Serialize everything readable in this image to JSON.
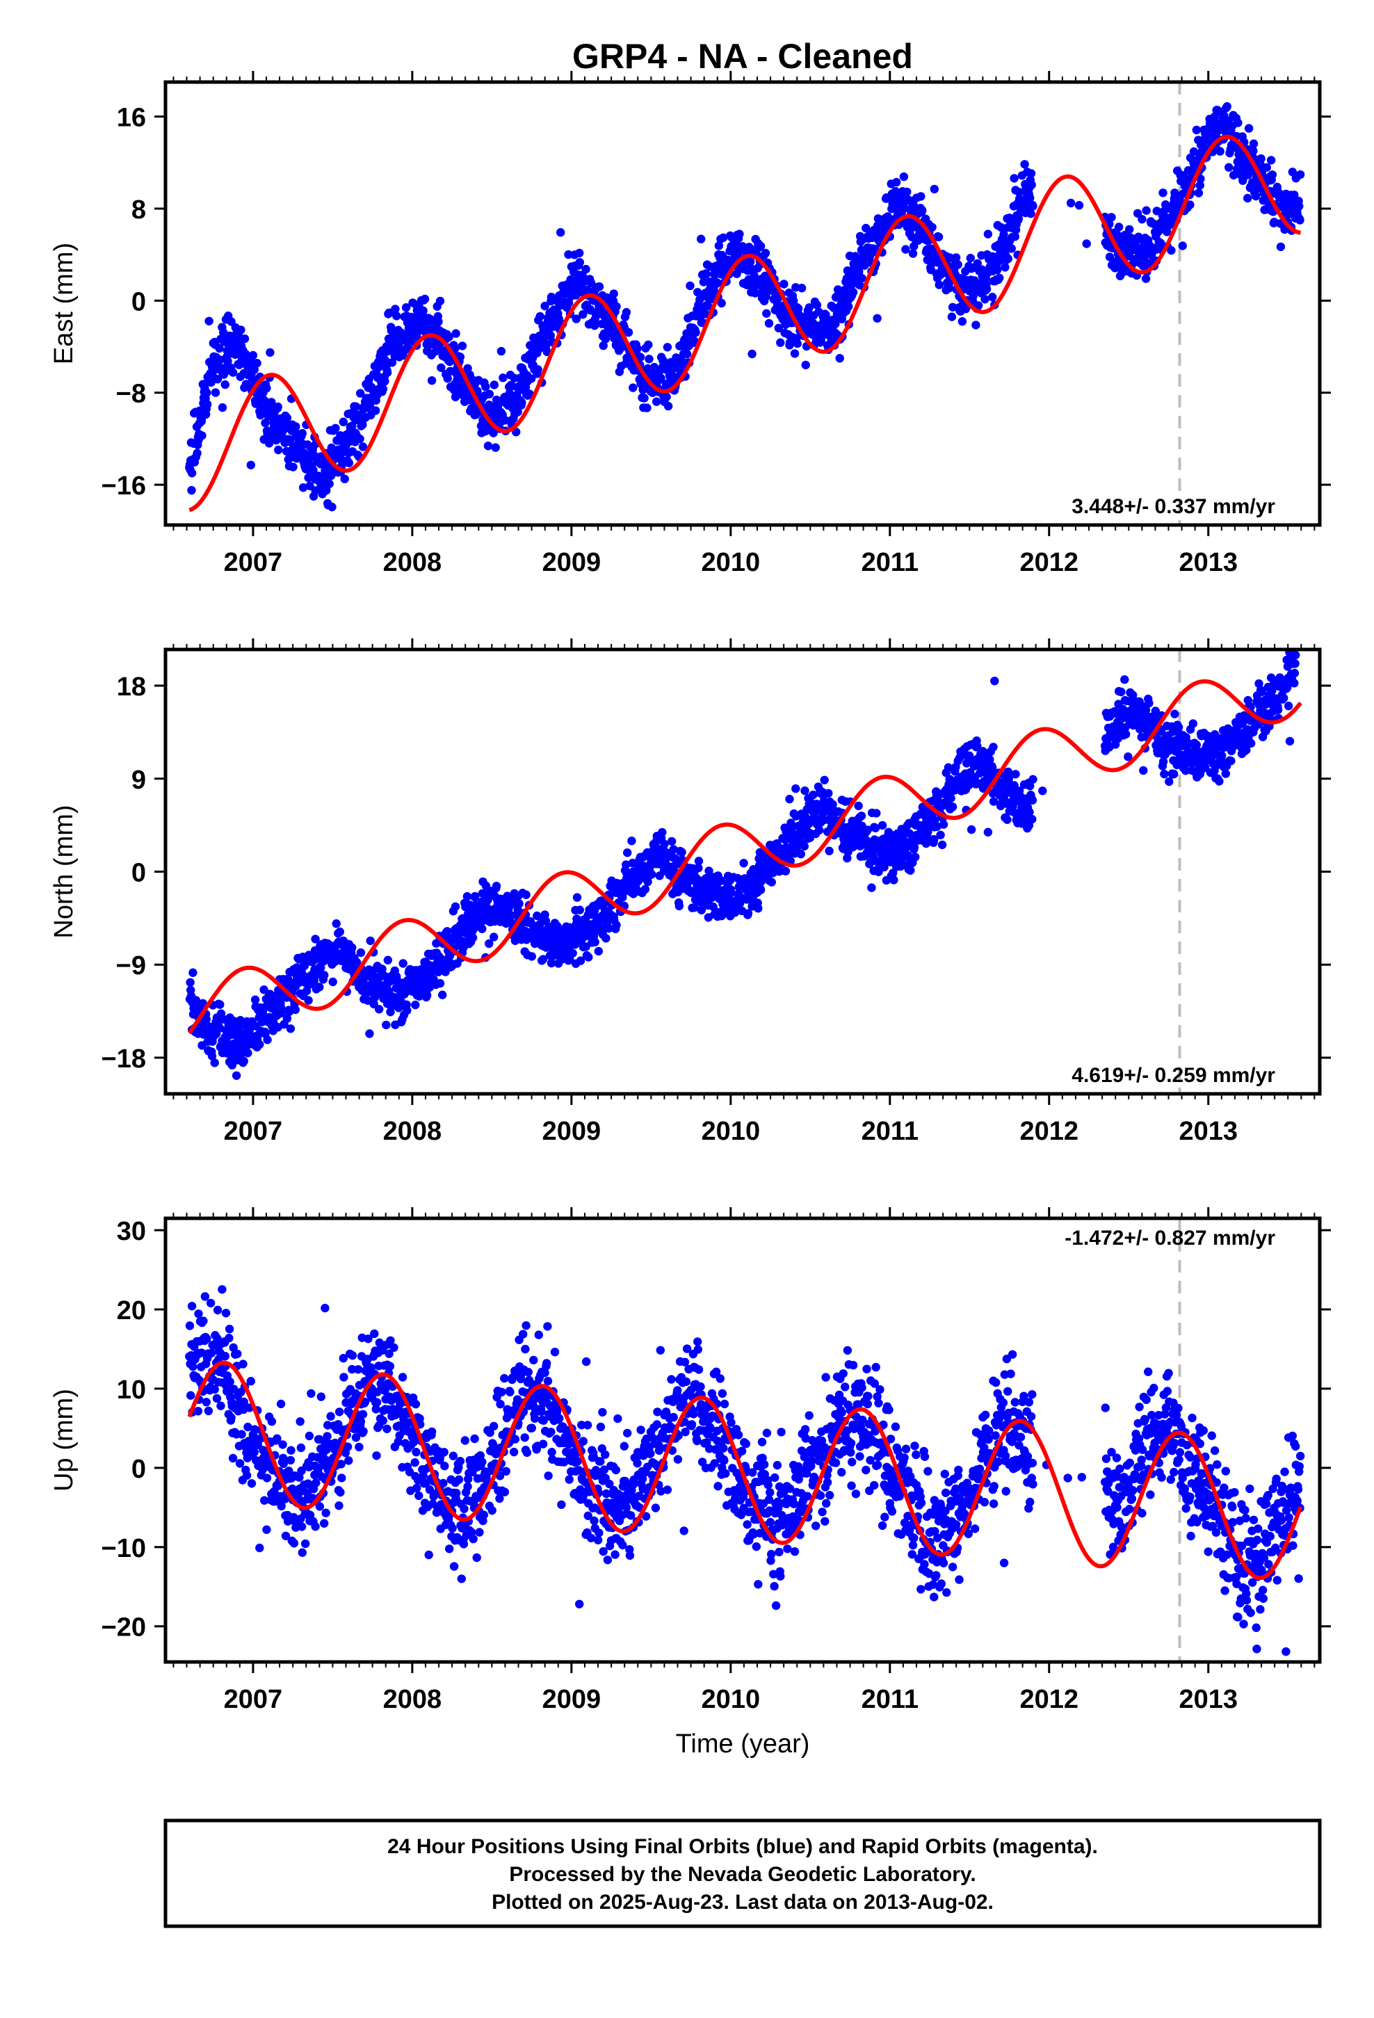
{
  "title": "GRP4  - NA - Cleaned",
  "colors": {
    "final": "#0000ff",
    "model": "#ff0000",
    "marker": "#bdbdbd",
    "frame": "#000000"
  },
  "chart_data": [
    {
      "type": "scatter",
      "ylabel": "East (mm)",
      "ylim": [
        -19.5,
        19
      ],
      "xlim": [
        2006.45,
        2013.7
      ],
      "yticks": [
        "16",
        "8",
        "0",
        "−8",
        "−16"
      ],
      "ytick_values": [
        16,
        8,
        0,
        -8,
        -16
      ],
      "xticks": [
        "2007",
        "2008",
        "2009",
        "2010",
        "2011",
        "2012",
        "2013"
      ],
      "xtick_values": [
        2007,
        2008,
        2009,
        2010,
        2011,
        2012,
        2013
      ],
      "marker_line": 2012.82,
      "rate_label": "3.448+/- 0.337 mm/yr",
      "model": {
        "t0": 2006.6,
        "y0": -13.2,
        "rate": 3.448,
        "sin": 0,
        "cos": -5.0,
        "phase_shift": 0,
        "year_min": 2006.6,
        "year_max": 2013.58
      },
      "series": [
        {
          "name": "Final Orbits",
          "values": [
            [
              2006.6,
              -14.5
            ],
            [
              2006.75,
              -5.5
            ],
            [
              2006.9,
              -4.0
            ],
            [
              2007.05,
              -8.5
            ],
            [
              2007.25,
              -12.5
            ],
            [
              2007.45,
              -15.5
            ],
            [
              2007.65,
              -11.0
            ],
            [
              2007.85,
              -4.5
            ],
            [
              2008.05,
              -1.5
            ],
            [
              2008.25,
              -5.0
            ],
            [
              2008.45,
              -10.0
            ],
            [
              2008.65,
              -9.0
            ],
            [
              2008.85,
              -2.0
            ],
            [
              2009.05,
              1.5
            ],
            [
              2009.25,
              -2.0
            ],
            [
              2009.45,
              -7.0
            ],
            [
              2009.65,
              -6.5
            ],
            [
              2009.85,
              1.0
            ],
            [
              2010.05,
              4.5
            ],
            [
              2010.25,
              1.0
            ],
            [
              2010.45,
              -2.5
            ],
            [
              2010.65,
              -2.0
            ],
            [
              2010.85,
              4.0
            ],
            [
              2011.05,
              8.5
            ],
            [
              2011.25,
              5.0
            ],
            [
              2011.45,
              1.0
            ],
            [
              2011.65,
              2.5
            ],
            [
              2011.85,
              9.0
            ],
            [
              2012.05,
              11.0
            ],
            [
              2012.45,
              4.0
            ],
            [
              2012.65,
              5.0
            ],
            [
              2012.85,
              9.5
            ],
            [
              2013.05,
              15.5
            ],
            [
              2013.25,
              12.0
            ],
            [
              2013.45,
              8.0
            ],
            [
              2013.58,
              8.5
            ]
          ]
        }
      ]
    },
    {
      "type": "scatter",
      "ylabel": "North (mm)",
      "ylim": [
        -21.5,
        21.5
      ],
      "xlim": [
        2006.45,
        2013.7
      ],
      "yticks": [
        "18",
        "9",
        "0",
        "−9",
        "−18"
      ],
      "ytick_values": [
        18,
        9,
        0,
        -9,
        -18
      ],
      "xticks": [
        "2007",
        "2008",
        "2009",
        "2010",
        "2011",
        "2012",
        "2013"
      ],
      "xtick_values": [
        2007,
        2008,
        2009,
        2010,
        2011,
        2012,
        2013
      ],
      "marker_line": 2012.82,
      "rate_label": "4.619+/- 0.259 mm/yr",
      "model": {
        "t0": 2006.6,
        "y0": -14.0,
        "rate": 4.619,
        "sin": 2.6,
        "cos": -1.6,
        "phase_shift": 0,
        "year_min": 2006.6,
        "year_max": 2013.58
      },
      "series": [
        {
          "name": "Final Orbits",
          "values": [
            [
              2006.6,
              -13.0
            ],
            [
              2006.75,
              -15.5
            ],
            [
              2006.95,
              -16.5
            ],
            [
              2007.15,
              -13.0
            ],
            [
              2007.35,
              -9.0
            ],
            [
              2007.55,
              -8.0
            ],
            [
              2007.75,
              -11.0
            ],
            [
              2007.95,
              -12.0
            ],
            [
              2008.15,
              -9.0
            ],
            [
              2008.35,
              -5.0
            ],
            [
              2008.55,
              -3.0
            ],
            [
              2008.75,
              -6.0
            ],
            [
              2008.95,
              -7.0
            ],
            [
              2009.15,
              -5.0
            ],
            [
              2009.35,
              -1.0
            ],
            [
              2009.55,
              1.5
            ],
            [
              2009.75,
              -1.0
            ],
            [
              2009.95,
              -2.5
            ],
            [
              2010.15,
              -1.5
            ],
            [
              2010.35,
              2.5
            ],
            [
              2010.55,
              6.0
            ],
            [
              2010.75,
              3.5
            ],
            [
              2010.95,
              2.0
            ],
            [
              2011.15,
              3.0
            ],
            [
              2011.35,
              7.0
            ],
            [
              2011.55,
              11.0
            ],
            [
              2011.75,
              7.5
            ],
            [
              2011.85,
              6.0
            ],
            [
              2012.35,
              13.0
            ],
            [
              2012.55,
              15.5
            ],
            [
              2012.75,
              12.0
            ],
            [
              2012.95,
              11.0
            ],
            [
              2013.15,
              12.5
            ],
            [
              2013.35,
              15.0
            ],
            [
              2013.55,
              20.0
            ]
          ]
        }
      ]
    },
    {
      "type": "scatter",
      "ylabel": "Up (mm)",
      "xlabel": "Time (year)",
      "ylim": [
        -24.5,
        31.5
      ],
      "xlim": [
        2006.45,
        2013.7
      ],
      "yticks": [
        "30",
        "20",
        "10",
        "0",
        "−10",
        "−20"
      ],
      "ytick_values": [
        30,
        20,
        10,
        0,
        -10,
        -20
      ],
      "xticks": [
        "2007",
        "2008",
        "2009",
        "2010",
        "2011",
        "2012",
        "2013"
      ],
      "xtick_values": [
        2007,
        2008,
        2009,
        2010,
        2011,
        2012,
        2013
      ],
      "marker_line": 2012.82,
      "rate_label": "-1.472+/- 0.827 mm/yr",
      "model": {
        "t0": 2006.6,
        "y0": 4.8,
        "rate": -1.472,
        "sin": 0,
        "cos": 8.8,
        "phase_shift": 0.22,
        "year_min": 2006.6,
        "year_max": 2013.58
      },
      "series": [
        {
          "name": "Final Orbits",
          "values": [
            [
              2006.6,
              12.5
            ],
            [
              2006.8,
              14.0
            ],
            [
              2007.0,
              3.0
            ],
            [
              2007.2,
              -4.0
            ],
            [
              2007.4,
              -2.0
            ],
            [
              2007.6,
              6.0
            ],
            [
              2007.75,
              12.0
            ],
            [
              2007.95,
              7.0
            ],
            [
              2008.15,
              -2.0
            ],
            [
              2008.3,
              -5.5
            ],
            [
              2008.5,
              -1.0
            ],
            [
              2008.7,
              10.0
            ],
            [
              2008.9,
              7.0
            ],
            [
              2009.1,
              -1.0
            ],
            [
              2009.3,
              -6.0
            ],
            [
              2009.5,
              0.0
            ],
            [
              2009.7,
              9.0
            ],
            [
              2009.9,
              6.0
            ],
            [
              2010.1,
              -3.0
            ],
            [
              2010.3,
              -7.0
            ],
            [
              2010.5,
              -2.0
            ],
            [
              2010.7,
              7.0
            ],
            [
              2010.9,
              5.0
            ],
            [
              2011.1,
              -4.0
            ],
            [
              2011.3,
              -10.0
            ],
            [
              2011.5,
              -4.0
            ],
            [
              2011.7,
              6.0
            ],
            [
              2011.85,
              3.0
            ],
            [
              2012.4,
              -6.0
            ],
            [
              2012.6,
              3.0
            ],
            [
              2012.75,
              5.5
            ],
            [
              2012.95,
              -3.0
            ],
            [
              2013.15,
              -10.0
            ],
            [
              2013.3,
              -13.0
            ],
            [
              2013.45,
              -7.0
            ],
            [
              2013.58,
              -1.0
            ]
          ]
        }
      ]
    }
  ],
  "footer": {
    "line1": "24 Hour Positions Using Final Orbits (blue) and Rapid Orbits (magenta).",
    "line2": "Processed by the Nevada Geodetic Laboratory.",
    "line3": "Plotted on 2025-Aug-23. Last data on 2013-Aug-02."
  }
}
